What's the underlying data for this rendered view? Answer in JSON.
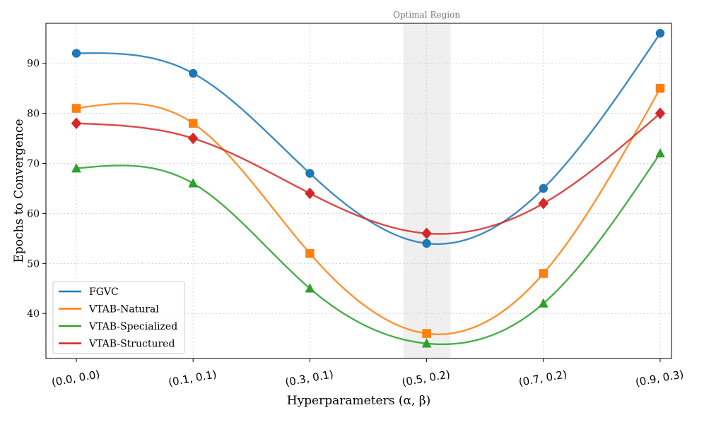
{
  "chart_data": {
    "type": "line",
    "categories": [
      "(0.0, 0.0)",
      "(0.1, 0.1)",
      "(0.3, 0.1)",
      "(0.5, 0.2)",
      "(0.7, 0.2)",
      "(0.9, 0.3)"
    ],
    "xlabel": "Hyperparameters (α, β)",
    "ylabel": "Epochs to Convergence",
    "ylim": [
      31,
      98
    ],
    "yticks": [
      40,
      50,
      60,
      70,
      80,
      90
    ],
    "grid": true,
    "legend_position": "lower-left",
    "annotation": {
      "label": "Optimal Region",
      "category": "(0.5, 0.2)"
    },
    "series": [
      {
        "name": "FGVC",
        "values": [
          92,
          88,
          68,
          54,
          65,
          96
        ],
        "color": "#1f77b4",
        "marker": "circle"
      },
      {
        "name": "VTAB-Natural",
        "values": [
          81,
          78,
          52,
          36,
          48,
          85
        ],
        "color": "#ff7f0e",
        "marker": "square"
      },
      {
        "name": "VTAB-Specialized",
        "values": [
          69,
          66,
          45,
          34,
          42,
          72
        ],
        "color": "#2ca02c",
        "marker": "triangle"
      },
      {
        "name": "VTAB-Structured",
        "values": [
          78,
          75,
          64,
          56,
          62,
          80
        ],
        "color": "#d62728",
        "marker": "diamond"
      }
    ]
  }
}
